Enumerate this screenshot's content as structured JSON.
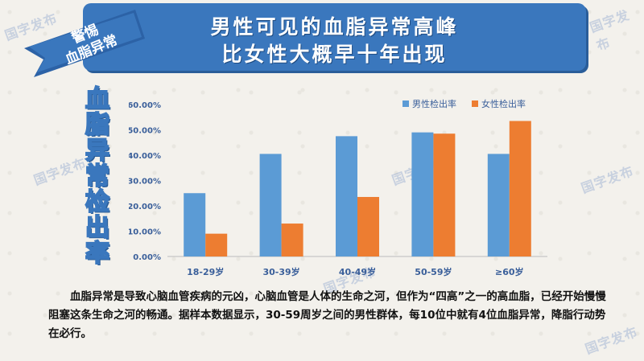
{
  "watermark_text": "国字发布",
  "title": {
    "line1": "男性可见的血脂异常高峰",
    "line2": "比女性大概早十年出现"
  },
  "ribbon": {
    "line1": "警惕",
    "line2": "血脂异常"
  },
  "side_title": [
    "血",
    "脂",
    "异",
    "常",
    "检",
    "出",
    "率"
  ],
  "colors": {
    "banner": "#3a77bd",
    "male": "#5b9bd5",
    "female": "#ed7d31",
    "text": "#111111"
  },
  "chart_data": {
    "type": "bar",
    "categories": [
      "18-29岁",
      "30-39岁",
      "40-49岁",
      "50-59岁",
      "≥60岁"
    ],
    "series": [
      {
        "name": "男性检出率",
        "values": [
          25.0,
          40.5,
          47.5,
          49.0,
          40.5
        ]
      },
      {
        "name": "女性检出率",
        "values": [
          9.0,
          13.0,
          23.5,
          48.5,
          53.5
        ]
      }
    ],
    "yticks": [
      "0.00%",
      "10.00%",
      "20.00%",
      "30.00%",
      "40.00%",
      "50.00%",
      "60.00%"
    ],
    "ylim": [
      0,
      60
    ],
    "legend": "top-right",
    "grid": false
  },
  "paragraph": "血脂异常是导致心脑血管疾病的元凶，心脑血管是人体的生命之河，但作为“四高”之一的高血脂，已经开始慢慢阻塞这条生命之河的畅通。据样本数据显示，30-59周岁之间的男性群体，每10位中就有4位血脂异常，降脂行动势在必行。"
}
